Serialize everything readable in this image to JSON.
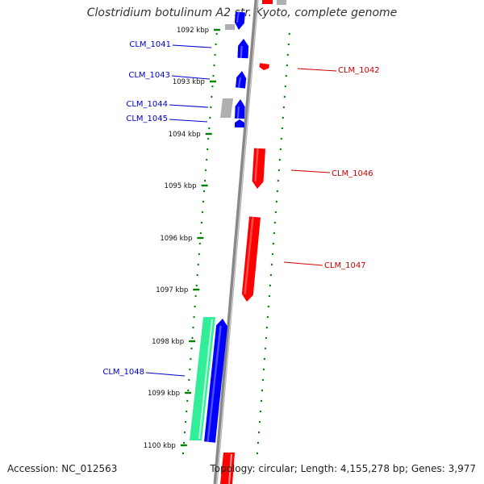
{
  "title": "Clostridium botulinum A2 str. Kyoto, complete genome",
  "footer": {
    "accession": "Accession: NC_012563",
    "summary": "Topology: circular; Length: 4,155,278 bp; Genes: 3,977"
  },
  "colors": {
    "forward": "#0000ff",
    "reverse": "#ff0000",
    "label_forward": "#0000cc",
    "label_reverse": "#cc0000",
    "backbone": "#888888",
    "ticks": "#008000",
    "rna": "#33ee99",
    "pseudo": "#b0b0b0"
  },
  "ruler": {
    "unit": "kbp",
    "ticks": [
      "1092 kbp",
      "1093 kbp",
      "1094 kbp",
      "1095 kbp",
      "1096 kbp",
      "1097 kbp",
      "1098 kbp",
      "1099 kbp",
      "1100 kbp"
    ]
  },
  "genes": [
    {
      "label": "CLM_1041",
      "strand": "+"
    },
    {
      "label": "CLM_1042",
      "strand": "-"
    },
    {
      "label": "CLM_1043",
      "strand": "+"
    },
    {
      "label": "CLM_1044",
      "strand": "+"
    },
    {
      "label": "CLM_1045",
      "strand": "+"
    },
    {
      "label": "CLM_1046",
      "strand": "-"
    },
    {
      "label": "CLM_1047",
      "strand": "-"
    },
    {
      "label": "CLM_1048",
      "strand": "+"
    }
  ]
}
